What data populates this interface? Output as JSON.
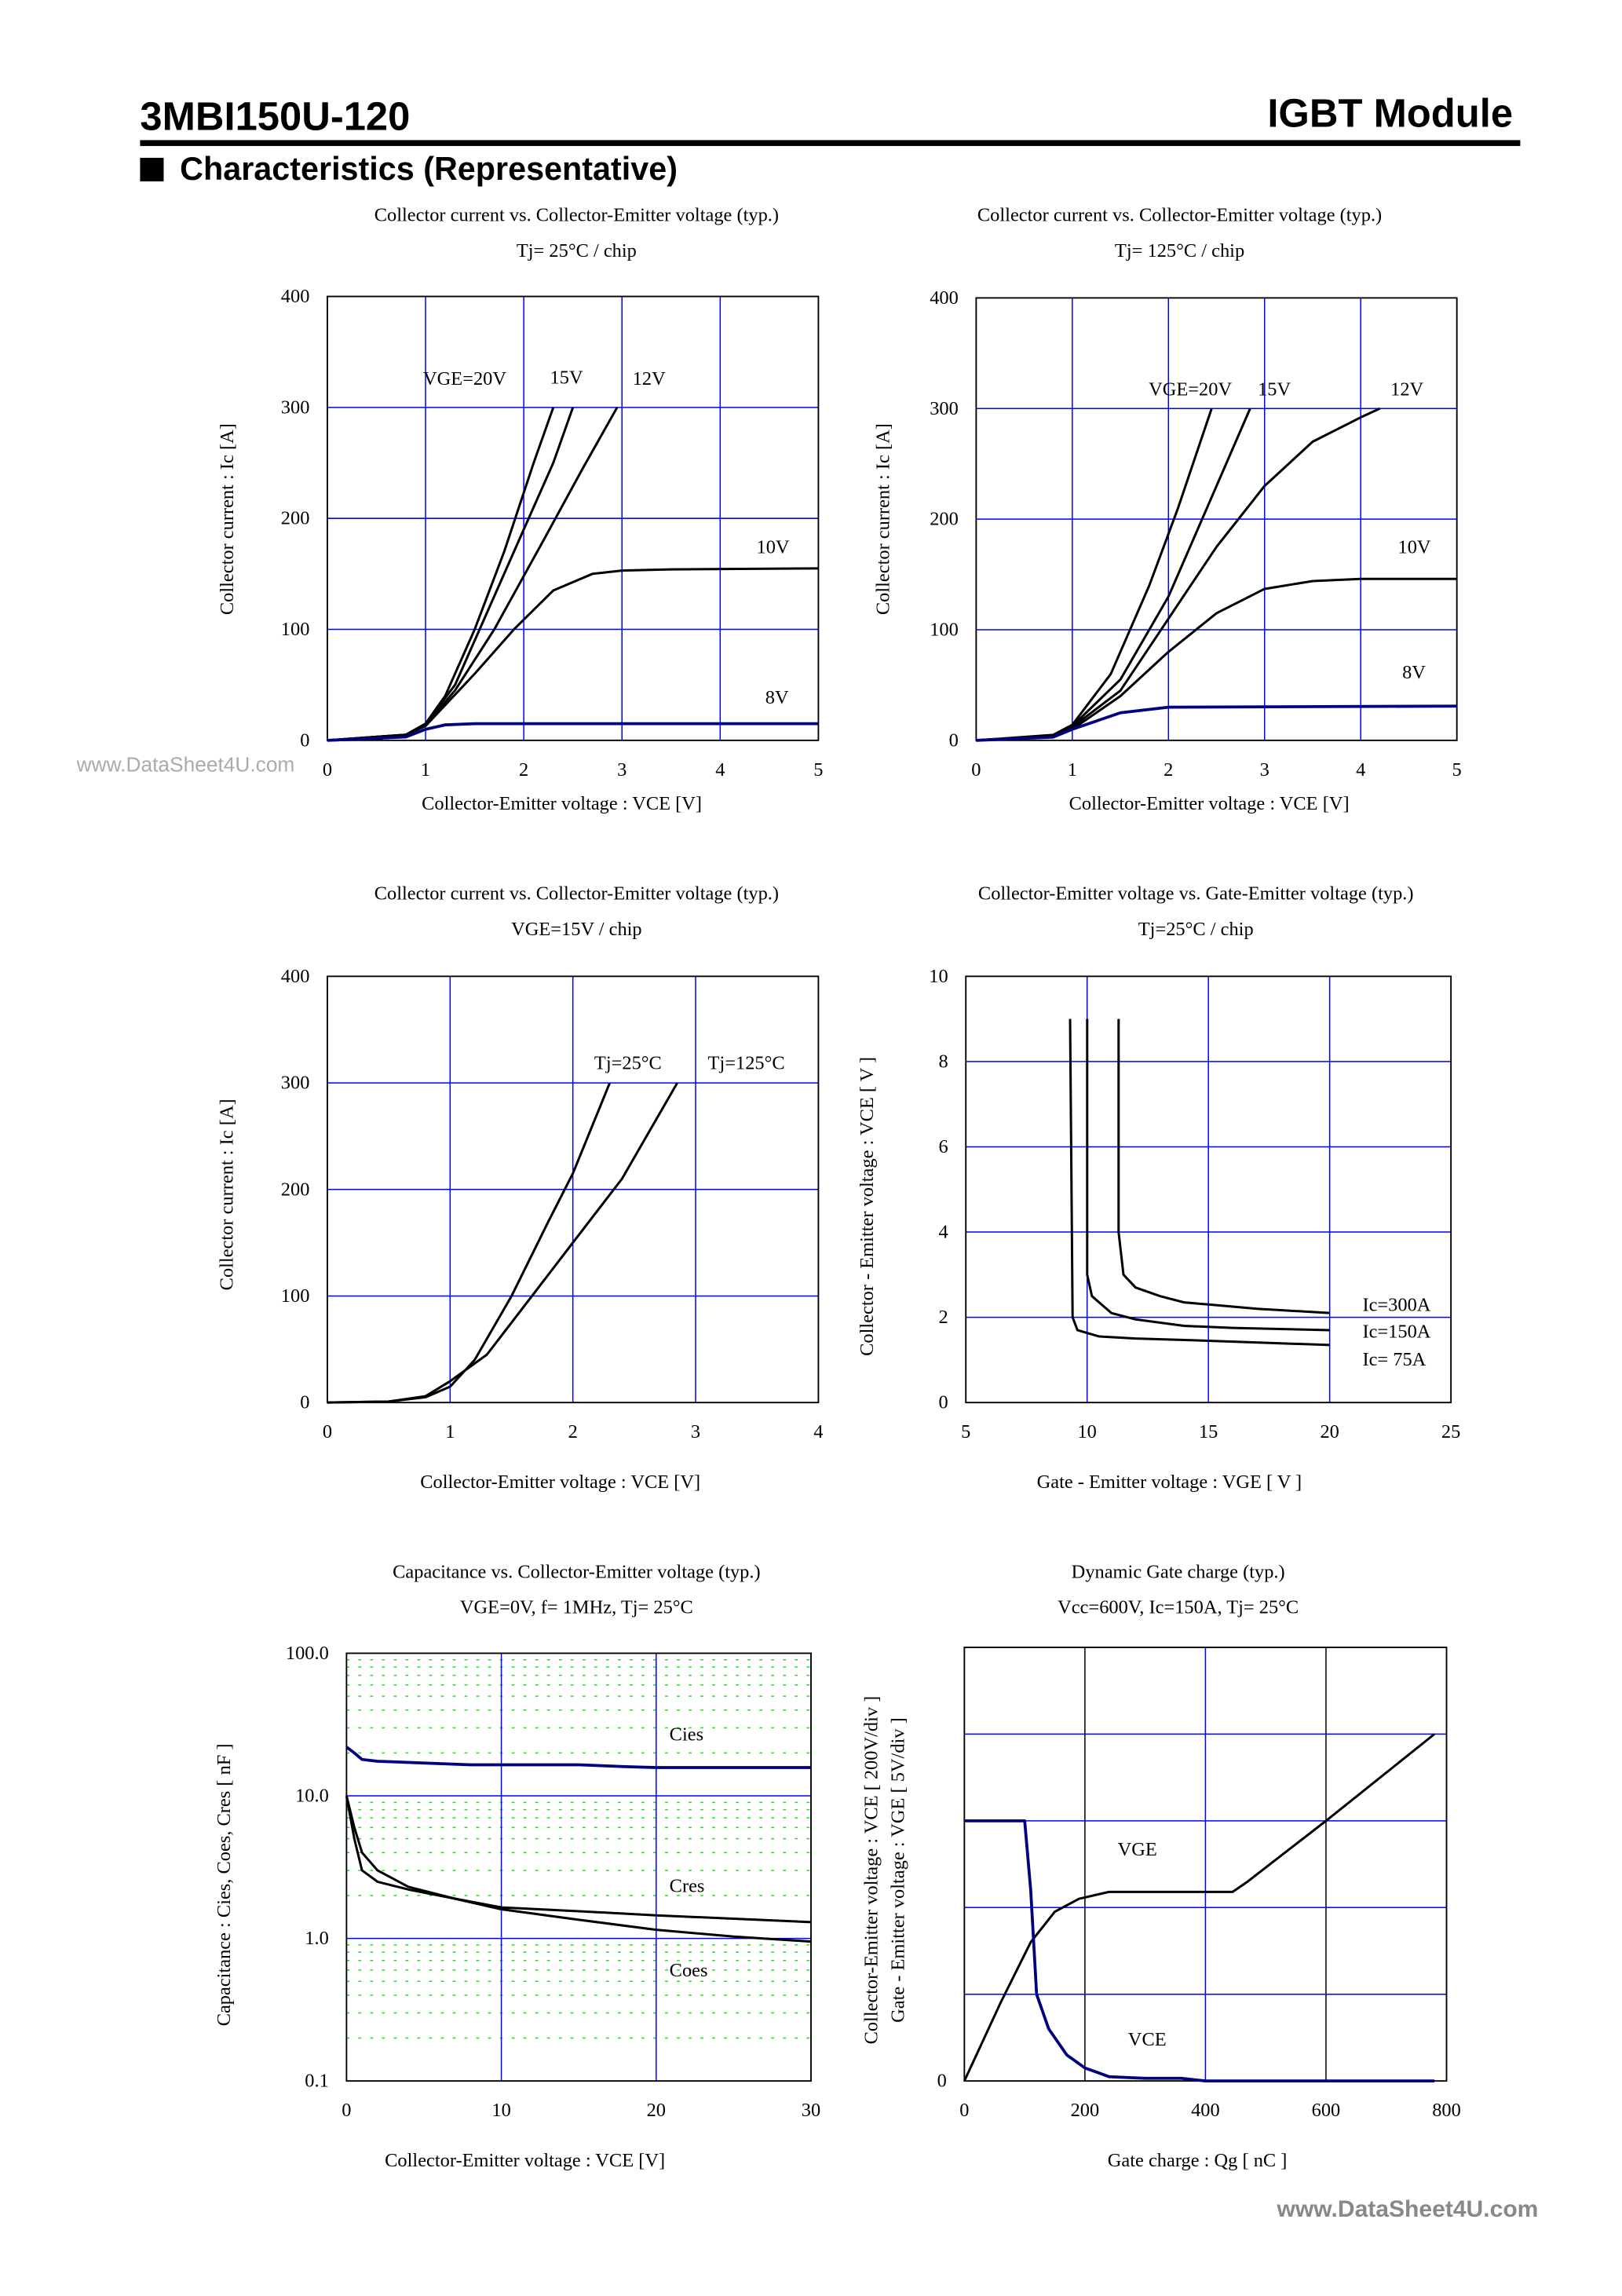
{
  "header": {
    "part_number": "3MBI150U-120",
    "product_type": "IGBT Module",
    "section_title": "Characteristics (Representative)"
  },
  "watermarks": [
    "www.DataSheet4U.com",
    "www.DataSheet4U.com"
  ],
  "chart_data": [
    {
      "type": "line",
      "title": "Collector current vs. Collector-Emitter voltage (typ.)",
      "subtitle": "Tj= 25°C / chip",
      "xlabel": "Collector-Emitter voltage : VCE [V]",
      "ylabel": [
        "Collector current : Ic [A]"
      ],
      "xlim": [
        0,
        5
      ],
      "ylim": [
        0,
        400
      ],
      "y_scale": "linear",
      "grid": true,
      "x_ticks": [
        "0",
        "1",
        "2",
        "3",
        "4",
        "5"
      ],
      "y_ticks": [
        "0",
        "100",
        "200",
        "300",
        "400"
      ],
      "series": [
        {
          "name": "VGE=20V",
          "color": "#000000",
          "points": [
            [
              0,
              0
            ],
            [
              0.5,
              1
            ],
            [
              0.8,
              5
            ],
            [
              1,
              15
            ],
            [
              1.2,
              40
            ],
            [
              1.5,
              100
            ],
            [
              1.8,
              170
            ],
            [
              2.1,
              250
            ],
            [
              2.3,
              300
            ]
          ]
        },
        {
          "name": "15V",
          "color": "#000000",
          "points": [
            [
              0,
              0
            ],
            [
              0.8,
              5
            ],
            [
              1,
              15
            ],
            [
              1.3,
              50
            ],
            [
              1.6,
              110
            ],
            [
              2,
              190
            ],
            [
              2.3,
              250
            ],
            [
              2.5,
              300
            ]
          ]
        },
        {
          "name": "12V",
          "color": "#000000",
          "points": [
            [
              0,
              0
            ],
            [
              0.8,
              5
            ],
            [
              1,
              14
            ],
            [
              1.3,
              45
            ],
            [
              1.7,
              100
            ],
            [
              2.2,
              180
            ],
            [
              2.6,
              245
            ],
            [
              2.95,
              300
            ]
          ]
        },
        {
          "name": "10V",
          "color": "#000000",
          "points": [
            [
              0,
              0
            ],
            [
              0.8,
              5
            ],
            [
              1,
              13
            ],
            [
              1.5,
              60
            ],
            [
              1.9,
              100
            ],
            [
              2.3,
              135
            ],
            [
              2.7,
              150
            ],
            [
              3,
              153
            ],
            [
              3.5,
              154
            ],
            [
              5,
              155
            ]
          ]
        },
        {
          "name": "8V",
          "color": "#000080",
          "points": [
            [
              0,
              0
            ],
            [
              0.8,
              3
            ],
            [
              1,
              10
            ],
            [
              1.2,
              14
            ],
            [
              1.5,
              15
            ],
            [
              5,
              15
            ]
          ]
        }
      ]
    },
    {
      "type": "line",
      "title": "Collector current vs. Collector-Emitter voltage (typ.)",
      "subtitle": "Tj= 125°C / chip",
      "xlabel": "Collector-Emitter voltage : VCE [V]",
      "ylabel": [
        "Collector current : Ic [A]"
      ],
      "xlim": [
        0,
        5
      ],
      "ylim": [
        0,
        400
      ],
      "y_scale": "linear",
      "grid": true,
      "x_ticks": [
        "0",
        "1",
        "2",
        "3",
        "4",
        "5"
      ],
      "y_ticks": [
        "0",
        "100",
        "200",
        "300",
        "400"
      ],
      "series": [
        {
          "name": "VGE=20V",
          "color": "#000000",
          "points": [
            [
              0,
              0
            ],
            [
              0.8,
              5
            ],
            [
              1,
              14
            ],
            [
              1.4,
              60
            ],
            [
              1.8,
              140
            ],
            [
              2.1,
              210
            ],
            [
              2.45,
              300
            ]
          ]
        },
        {
          "name": "15V",
          "color": "#000000",
          "points": [
            [
              0,
              0
            ],
            [
              0.8,
              4
            ],
            [
              1,
              13
            ],
            [
              1.5,
              55
            ],
            [
              2,
              130
            ],
            [
              2.4,
              210
            ],
            [
              2.85,
              300
            ]
          ]
        },
        {
          "name": "12V",
          "color": "#000000",
          "points": [
            [
              0,
              0
            ],
            [
              0.8,
              4
            ],
            [
              1,
              12
            ],
            [
              1.5,
              45
            ],
            [
              2,
              110
            ],
            [
              2.5,
              175
            ],
            [
              3,
              230
            ],
            [
              3.5,
              270
            ],
            [
              4,
              292
            ],
            [
              4.2,
              300
            ]
          ]
        },
        {
          "name": "10V",
          "color": "#000000",
          "points": [
            [
              0,
              0
            ],
            [
              0.8,
              4
            ],
            [
              1,
              10
            ],
            [
              1.5,
              40
            ],
            [
              2,
              80
            ],
            [
              2.5,
              115
            ],
            [
              3,
              137
            ],
            [
              3.5,
              144
            ],
            [
              4,
              146
            ],
            [
              5,
              146
            ]
          ]
        },
        {
          "name": "8V",
          "color": "#000080",
          "points": [
            [
              0,
              0
            ],
            [
              0.8,
              3
            ],
            [
              1,
              10
            ],
            [
              1.5,
              25
            ],
            [
              2,
              30
            ],
            [
              5,
              31
            ]
          ]
        }
      ]
    },
    {
      "type": "line",
      "title": "Collector current vs. Collector-Emitter voltage (typ.)",
      "subtitle": "VGE=15V / chip",
      "xlabel": "Collector-Emitter voltage : VCE [V]",
      "ylabel": [
        "Collector current : Ic [A]"
      ],
      "xlim": [
        0,
        4
      ],
      "ylim": [
        0,
        400
      ],
      "y_scale": "linear",
      "grid": true,
      "x_ticks": [
        "0",
        "1",
        "2",
        "3",
        "4"
      ],
      "y_ticks": [
        "0",
        "100",
        "200",
        "300",
        "400"
      ],
      "series": [
        {
          "name": "Tj=25°C",
          "color": "#000000",
          "points": [
            [
              0,
              0
            ],
            [
              0.5,
              1
            ],
            [
              0.8,
              5
            ],
            [
              1,
              15
            ],
            [
              1.2,
              40
            ],
            [
              1.5,
              100
            ],
            [
              1.8,
              170
            ],
            [
              2,
              215
            ],
            [
              2.3,
              300
            ]
          ]
        },
        {
          "name": "Tj=125°C",
          "color": "#000000",
          "points": [
            [
              0,
              0
            ],
            [
              0.5,
              1
            ],
            [
              0.8,
              6
            ],
            [
              1,
              20
            ],
            [
              1.3,
              45
            ],
            [
              1.6,
              90
            ],
            [
              2,
              150
            ],
            [
              2.4,
              210
            ],
            [
              2.85,
              300
            ]
          ]
        }
      ]
    },
    {
      "type": "line",
      "title": "Collector-Emitter voltage  vs. Gate-Emitter voltage (typ.)",
      "subtitle": "Tj=25°C / chip",
      "xlabel": "Gate - Emitter voltage  :  VGE  [ V ]",
      "ylabel": [
        "Collector - Emitter voltage  :  VCE  [ V ]"
      ],
      "xlim": [
        5,
        25
      ],
      "ylim": [
        0,
        10
      ],
      "y_scale": "linear",
      "grid": true,
      "x_ticks": [
        "5",
        "10",
        "15",
        "20",
        "25"
      ],
      "y_ticks": [
        "0",
        "2",
        "4",
        "6",
        "8",
        "10"
      ],
      "series": [
        {
          "name": "Ic=300A",
          "color": "#000000",
          "points": [
            [
              11.3,
              9
            ],
            [
              11.3,
              4
            ],
            [
              11.5,
              3
            ],
            [
              12,
              2.7
            ],
            [
              13,
              2.5
            ],
            [
              14,
              2.35
            ],
            [
              15,
              2.3
            ],
            [
              17,
              2.2
            ],
            [
              20,
              2.1
            ]
          ]
        },
        {
          "name": "Ic=150A",
          "color": "#000000",
          "points": [
            [
              10,
              9
            ],
            [
              10,
              3
            ],
            [
              10.2,
              2.5
            ],
            [
              11,
              2.1
            ],
            [
              12,
              1.95
            ],
            [
              14,
              1.8
            ],
            [
              16,
              1.75
            ],
            [
              20,
              1.7
            ]
          ]
        },
        {
          "name": "Ic= 75A",
          "color": "#000000",
          "points": [
            [
              9.3,
              9
            ],
            [
              9.4,
              2
            ],
            [
              9.6,
              1.7
            ],
            [
              10.5,
              1.55
            ],
            [
              12,
              1.5
            ],
            [
              15,
              1.45
            ],
            [
              20,
              1.35
            ]
          ]
        }
      ]
    },
    {
      "type": "line",
      "title": "Capacitance  vs.  Collector-Emitter voltage  (typ.)",
      "subtitle": "VGE=0V,  f= 1MHz,  Tj= 25°C",
      "xlabel": "Collector-Emitter voltage : VCE [V]",
      "ylabel": [
        "Capacitance  :  Cies, Coes, Cres  [ nF ]"
      ],
      "xlim": [
        0,
        30
      ],
      "ylim": [
        0.1,
        100
      ],
      "y_scale": "log",
      "grid": true,
      "x_ticks": [
        "0",
        "10",
        "20",
        "30"
      ],
      "y_ticks": [
        "0.1",
        "1.0",
        "10.0",
        "100.0"
      ],
      "series": [
        {
          "name": "Cies",
          "color": "#000080",
          "points": [
            [
              0,
              22
            ],
            [
              0.5,
              20
            ],
            [
              1,
              18
            ],
            [
              2,
              17.5
            ],
            [
              5,
              17
            ],
            [
              8,
              16.5
            ],
            [
              15,
              16.5
            ],
            [
              18,
              16
            ],
            [
              20,
              15.8
            ],
            [
              30,
              15.8
            ]
          ]
        },
        {
          "name": "Cres",
          "color": "#000000",
          "points": [
            [
              0,
              10
            ],
            [
              0.5,
              6
            ],
            [
              1,
              4
            ],
            [
              2,
              3
            ],
            [
              4,
              2.3
            ],
            [
              7,
              1.9
            ],
            [
              10,
              1.65
            ],
            [
              15,
              1.55
            ],
            [
              20,
              1.45
            ],
            [
              30,
              1.3
            ]
          ]
        },
        {
          "name": "Coes",
          "color": "#000000",
          "points": [
            [
              0,
              10
            ],
            [
              0.5,
              5
            ],
            [
              1,
              3
            ],
            [
              2,
              2.5
            ],
            [
              4,
              2.2
            ],
            [
              7,
              1.9
            ],
            [
              10,
              1.6
            ],
            [
              15,
              1.35
            ],
            [
              20,
              1.15
            ],
            [
              25,
              1.03
            ],
            [
              30,
              0.95
            ]
          ]
        }
      ]
    },
    {
      "type": "line",
      "title": "Dynamic Gate charge  (typ.)",
      "subtitle": "Vcc=600V,  Ic=150A,  Tj= 25°C",
      "xlabel": "Gate charge  :  Qg  [ nC ]",
      "ylabel": [
        "Collector-Emitter voltage : VCE [ 200V/div ]",
        "Gate - Emitter voltage  :  VGE    [ 5V/div ]"
      ],
      "xlim": [
        0,
        800
      ],
      "ylim": [
        0,
        5
      ],
      "y_scale": "linear",
      "grid": true,
      "x_ticks": [
        "0",
        "200",
        "400",
        "600",
        "800"
      ],
      "y_ticks": [
        "0"
      ],
      "series": [
        {
          "name": "VGE",
          "color": "#000000",
          "points": [
            [
              0,
              0
            ],
            [
              60,
              0.9
            ],
            [
              110,
              1.6
            ],
            [
              150,
              1.95
            ],
            [
              190,
              2.1
            ],
            [
              240,
              2.18
            ],
            [
              445,
              2.18
            ],
            [
              470,
              2.3
            ],
            [
              600,
              3.0
            ],
            [
              780,
              4.0
            ]
          ]
        },
        {
          "name": "VCE",
          "color": "#000080",
          "points": [
            [
              0,
              3.0
            ],
            [
              100,
              3.0
            ],
            [
              110,
              2.2
            ],
            [
              120,
              1.0
            ],
            [
              140,
              0.6
            ],
            [
              170,
              0.3
            ],
            [
              200,
              0.15
            ],
            [
              240,
              0.05
            ],
            [
              300,
              0.03
            ],
            [
              360,
              0.03
            ],
            [
              400,
              0
            ],
            [
              780,
              0
            ]
          ]
        }
      ]
    }
  ]
}
